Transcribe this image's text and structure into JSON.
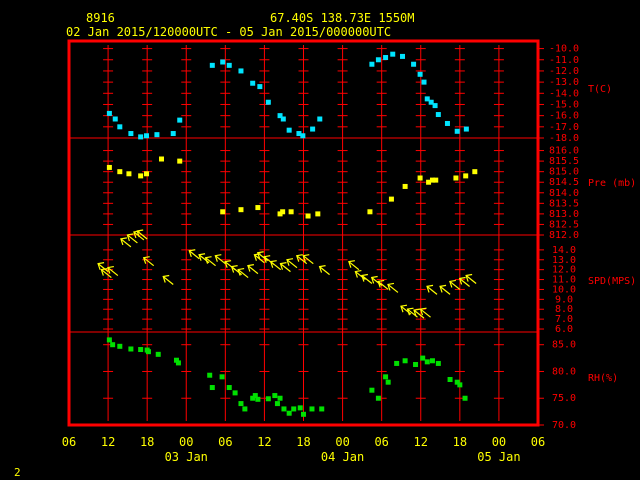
{
  "header": {
    "station_id": "8916",
    "location": "67.40S  138.73E  1550M",
    "time_range": "02 Jan 2015/120000UTC - 05 Jan 2015/000000UTC"
  },
  "footer": {
    "page_number": "2"
  },
  "colors": {
    "frame": "#ff0000",
    "text": "#ffff00",
    "grid": "#ff0000",
    "temperature": "#00e5ff",
    "pressure": "#ffff00",
    "wind": "#ffff00",
    "humidity": "#00e000",
    "background": "#000000"
  },
  "x_axis": {
    "range_hours": [
      -18,
      54
    ],
    "tick_hours": [
      -18,
      -12,
      -6,
      0,
      6,
      12,
      18,
      24,
      30,
      36,
      42,
      48,
      54
    ],
    "tick_labels": [
      "06",
      "12",
      "18",
      "00",
      "06",
      "12",
      "18",
      "00",
      "06",
      "12",
      "18",
      "00",
      "06"
    ],
    "day_labels": [
      {
        "text": "03 Jan",
        "hour": 0
      },
      {
        "text": "04 Jan",
        "hour": 24
      },
      {
        "text": "05 Jan",
        "hour": 48
      }
    ]
  },
  "chart_data": [
    {
      "type": "scatter",
      "panel": "temperature",
      "ylabel": "T(C)",
      "ylim": [
        -18.0,
        -9.5
      ],
      "tick_values": [
        -10,
        -11,
        -12,
        -13,
        -14,
        -15,
        -16,
        -17,
        -18
      ],
      "tick_labels": [
        "-10.0",
        "-11.0",
        "-12.0",
        "-13.0",
        "-14.0",
        "-15.0",
        "-16.0",
        "-17.0",
        "-18.0"
      ],
      "series": [
        {
          "values": [
            [
              -11.8,
              -15.8
            ],
            [
              -10.9,
              -16.3
            ],
            [
              -10.2,
              -17.0
            ],
            [
              -8.5,
              -17.6
            ],
            [
              -7.0,
              -17.9
            ],
            [
              -6.1,
              -17.8
            ],
            [
              -4.5,
              -17.7
            ],
            [
              -2.0,
              -17.6
            ],
            [
              -1.0,
              -16.4
            ],
            [
              4.0,
              -11.5
            ],
            [
              5.6,
              -11.2
            ],
            [
              6.6,
              -11.5
            ],
            [
              8.4,
              -12.0
            ],
            [
              10.2,
              -13.1
            ],
            [
              11.3,
              -13.4
            ],
            [
              12.6,
              -14.8
            ],
            [
              14.4,
              -16.0
            ],
            [
              14.9,
              -16.3
            ],
            [
              15.8,
              -17.3
            ],
            [
              17.3,
              -17.6
            ],
            [
              17.9,
              -17.8
            ],
            [
              19.4,
              -17.2
            ],
            [
              20.5,
              -16.3
            ],
            [
              28.5,
              -11.4
            ],
            [
              29.5,
              -11.0
            ],
            [
              30.6,
              -10.8
            ],
            [
              31.7,
              -10.5
            ],
            [
              33.2,
              -10.7
            ],
            [
              34.9,
              -11.4
            ],
            [
              35.9,
              -12.3
            ],
            [
              36.5,
              -13.0
            ],
            [
              37.0,
              -14.5
            ],
            [
              37.6,
              -14.8
            ],
            [
              38.2,
              -15.1
            ],
            [
              38.7,
              -15.9
            ],
            [
              40.1,
              -16.7
            ],
            [
              41.6,
              -17.4
            ],
            [
              43.0,
              -17.2
            ]
          ]
        }
      ]
    },
    {
      "type": "scatter",
      "panel": "pressure",
      "ylabel": "Pre (mb)",
      "ylim": [
        812.0,
        816.5
      ],
      "tick_values": [
        816.0,
        815.5,
        815.0,
        814.5,
        814.0,
        813.5,
        813.0,
        812.5,
        812.0
      ],
      "tick_labels": [
        "816.0",
        "815.5",
        "815.0",
        "814.5",
        "814.0",
        "813.5",
        "813.0",
        "812.5",
        "812.0"
      ],
      "series": [
        {
          "values": [
            [
              -11.8,
              815.2
            ],
            [
              -10.2,
              815.0
            ],
            [
              -8.8,
              814.9
            ],
            [
              -7.0,
              814.8
            ],
            [
              -6.1,
              814.9
            ],
            [
              -3.8,
              815.6
            ],
            [
              -1.0,
              815.5
            ],
            [
              5.6,
              813.1
            ],
            [
              8.4,
              813.2
            ],
            [
              11.0,
              813.3
            ],
            [
              14.4,
              813.0
            ],
            [
              14.8,
              813.1
            ],
            [
              16.1,
              813.1
            ],
            [
              18.7,
              812.9
            ],
            [
              20.2,
              813.0
            ],
            [
              28.2,
              813.1
            ],
            [
              31.5,
              813.7
            ],
            [
              33.6,
              814.3
            ],
            [
              35.9,
              814.7
            ],
            [
              37.2,
              814.5
            ],
            [
              37.8,
              814.6
            ],
            [
              38.3,
              814.6
            ],
            [
              41.4,
              814.7
            ],
            [
              42.9,
              814.8
            ],
            [
              44.3,
              815.0
            ]
          ]
        }
      ]
    },
    {
      "type": "scatter",
      "panel": "wind",
      "ylabel": "SPD(MPS)",
      "ylim": [
        5.7,
        15.3
      ],
      "tick_values": [
        14,
        13,
        12,
        11,
        10,
        9,
        8,
        7,
        6
      ],
      "tick_labels": [
        "14.0",
        "13.0",
        "12.0",
        "11.0",
        "10.0",
        "9.0",
        "8.0",
        "7.0",
        "6.0"
      ],
      "series": [
        {
          "values": [
            [
              -12.0,
              11.8
            ],
            [
              -11.5,
              11.2
            ],
            [
              -10.5,
              11.4
            ],
            [
              -8.5,
              14.3
            ],
            [
              -7.5,
              14.7
            ],
            [
              -6.5,
              15.0
            ],
            [
              -6.0,
              15.1
            ],
            [
              -5.0,
              12.4
            ],
            [
              -2.0,
              10.5
            ],
            [
              2.0,
              13.1
            ],
            [
              3.5,
              12.7
            ],
            [
              4.5,
              12.4
            ],
            [
              6.0,
              12.6
            ],
            [
              7.5,
              12.0
            ],
            [
              8.5,
              11.5
            ],
            [
              9.5,
              11.2
            ],
            [
              11.0,
              11.6
            ],
            [
              12.0,
              12.7
            ],
            [
              12.5,
              12.9
            ],
            [
              13.5,
              12.5
            ],
            [
              14.5,
              12.0
            ],
            [
              16.0,
              11.8
            ],
            [
              17.0,
              12.2
            ],
            [
              18.5,
              12.6
            ],
            [
              19.5,
              12.6
            ],
            [
              22.0,
              11.5
            ],
            [
              26.5,
              12.0
            ],
            [
              27.5,
              11.0
            ],
            [
              28.5,
              10.6
            ],
            [
              30.0,
              10.4
            ],
            [
              31.0,
              10.0
            ],
            [
              32.5,
              9.7
            ],
            [
              34.5,
              7.5
            ],
            [
              35.5,
              7.2
            ],
            [
              36.5,
              7.1
            ],
            [
              37.5,
              7.2
            ],
            [
              38.5,
              9.5
            ],
            [
              40.5,
              9.5
            ],
            [
              42.0,
              10.0
            ],
            [
              43.5,
              10.3
            ],
            [
              44.5,
              10.6
            ]
          ]
        }
      ]
    },
    {
      "type": "scatter",
      "panel": "humidity",
      "ylabel": "RH(%)",
      "ylim": [
        70.0,
        87.0
      ],
      "tick_values": [
        85,
        80,
        75,
        70
      ],
      "tick_labels": [
        "85.0",
        "80.0",
        "75.0",
        "70.0"
      ],
      "series": [
        {
          "values": [
            [
              -11.8,
              85.9
            ],
            [
              -11.3,
              85.0
            ],
            [
              -10.2,
              84.7
            ],
            [
              -8.5,
              84.2
            ],
            [
              -7.0,
              84.1
            ],
            [
              -6.0,
              84.0
            ],
            [
              -5.8,
              83.7
            ],
            [
              -4.3,
              83.2
            ],
            [
              -1.5,
              82.1
            ],
            [
              -1.2,
              81.6
            ],
            [
              3.6,
              79.3
            ],
            [
              4.0,
              77.0
            ],
            [
              5.5,
              79.0
            ],
            [
              6.6,
              77.0
            ],
            [
              7.5,
              76.0
            ],
            [
              8.4,
              74.0
            ],
            [
              9.0,
              73.0
            ],
            [
              10.2,
              75.0
            ],
            [
              10.6,
              75.5
            ],
            [
              11.0,
              74.8
            ],
            [
              12.6,
              74.9
            ],
            [
              13.6,
              75.5
            ],
            [
              14.0,
              74.0
            ],
            [
              14.4,
              75.0
            ],
            [
              15.0,
              73.0
            ],
            [
              15.8,
              72.2
            ],
            [
              16.5,
              73.0
            ],
            [
              17.5,
              73.2
            ],
            [
              18.0,
              72.0
            ],
            [
              19.3,
              73.0
            ],
            [
              20.8,
              73.0
            ],
            [
              28.5,
              76.5
            ],
            [
              29.5,
              75.0
            ],
            [
              30.6,
              79.0
            ],
            [
              31.0,
              78.0
            ],
            [
              32.3,
              81.5
            ],
            [
              33.6,
              82.0
            ],
            [
              35.2,
              81.3
            ],
            [
              36.3,
              82.5
            ],
            [
              37.0,
              81.8
            ],
            [
              37.8,
              82.0
            ],
            [
              38.7,
              81.5
            ],
            [
              40.5,
              78.5
            ],
            [
              41.6,
              78.0
            ],
            [
              42.0,
              77.5
            ],
            [
              42.8,
              75.0
            ]
          ]
        }
      ]
    }
  ]
}
